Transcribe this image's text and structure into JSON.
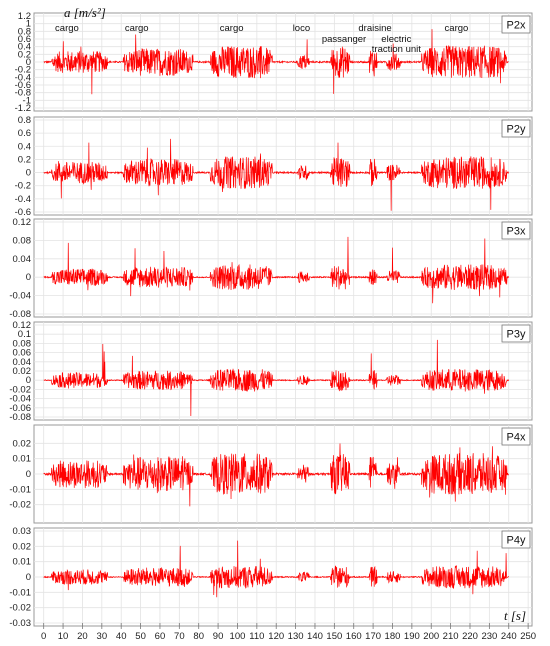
{
  "chart_data": {
    "type": "line",
    "y_axis_title": "a [m/s²]",
    "x_axis_title": "t [s]",
    "x_ticks": [
      0,
      10,
      20,
      30,
      40,
      50,
      60,
      70,
      80,
      90,
      100,
      110,
      120,
      130,
      140,
      150,
      160,
      170,
      180,
      190,
      200,
      210,
      220,
      230,
      240,
      250
    ],
    "xlim": [
      -5,
      252
    ],
    "color": "#ff0000",
    "annotations": [
      {
        "text": "cargo",
        "t": 12
      },
      {
        "text": "cargo",
        "t": 48
      },
      {
        "text": "cargo",
        "t": 97
      },
      {
        "text": "loco",
        "t": 133
      },
      {
        "text": "passanger",
        "t": 155
      },
      {
        "text": "draisine",
        "t": 171
      },
      {
        "text": "electric",
        "t": 182
      },
      {
        "text": "traction unit",
        "t": 182
      },
      {
        "text": "cargo",
        "t": 213
      }
    ],
    "events": [
      {
        "label": "cargo",
        "start": 4,
        "end": 33,
        "level": 0.42
      },
      {
        "label": "cargo",
        "start": 41,
        "end": 77,
        "level": 0.52
      },
      {
        "label": "cargo",
        "start": 86,
        "end": 118,
        "level": 0.62
      },
      {
        "label": "loco",
        "start": 131,
        "end": 137,
        "level": 0.28
      },
      {
        "label": "passanger",
        "start": 148,
        "end": 158,
        "level": 0.6
      },
      {
        "label": "draisine",
        "start": 168,
        "end": 172,
        "level": 0.55
      },
      {
        "label": "electric traction unit",
        "start": 177,
        "end": 184,
        "level": 0.32
      },
      {
        "label": "cargo",
        "start": 195,
        "end": 239,
        "level": 0.62
      }
    ],
    "panels": [
      {
        "name": "P2x",
        "ylim": [
          -1.2,
          1.2
        ],
        "yticks": [
          -1.2,
          -1,
          -0.8,
          -0.6,
          -0.4,
          -0.2,
          0,
          0.2,
          0.4,
          0.6,
          0.8,
          1,
          1.2
        ],
        "amplitude": 0.7,
        "peak": 1.15
      },
      {
        "name": "P2y",
        "ylim": [
          -0.6,
          0.8
        ],
        "yticks": [
          -0.6,
          -0.4,
          -0.2,
          0,
          0.2,
          0.4,
          0.6,
          0.8
        ],
        "amplitude": 0.4,
        "peak": 0.78
      },
      {
        "name": "P3x",
        "ylim": [
          -0.08,
          0.12
        ],
        "yticks": [
          -0.08,
          -0.04,
          0,
          0.04,
          0.08,
          0.12
        ],
        "amplitude": 0.045,
        "peak": 0.11
      },
      {
        "name": "P3y",
        "ylim": [
          -0.08,
          0.12
        ],
        "yticks": [
          -0.08,
          -0.06,
          -0.04,
          -0.02,
          0,
          0.02,
          0.04,
          0.06,
          0.08,
          0.1,
          0.12
        ],
        "amplitude": 0.04,
        "peak": 0.11
      },
      {
        "name": "P4x",
        "ylim": [
          -0.03,
          0.03
        ],
        "yticks": [
          -0.02,
          -0.01,
          0,
          0.01,
          0.02
        ],
        "amplitude": 0.022,
        "peak": 0.027
      },
      {
        "name": "P4y",
        "ylim": [
          -0.03,
          0.03
        ],
        "yticks": [
          -0.03,
          -0.02,
          -0.01,
          0,
          0.01,
          0.02,
          0.03
        ],
        "amplitude": 0.012,
        "peak": 0.03
      }
    ]
  }
}
